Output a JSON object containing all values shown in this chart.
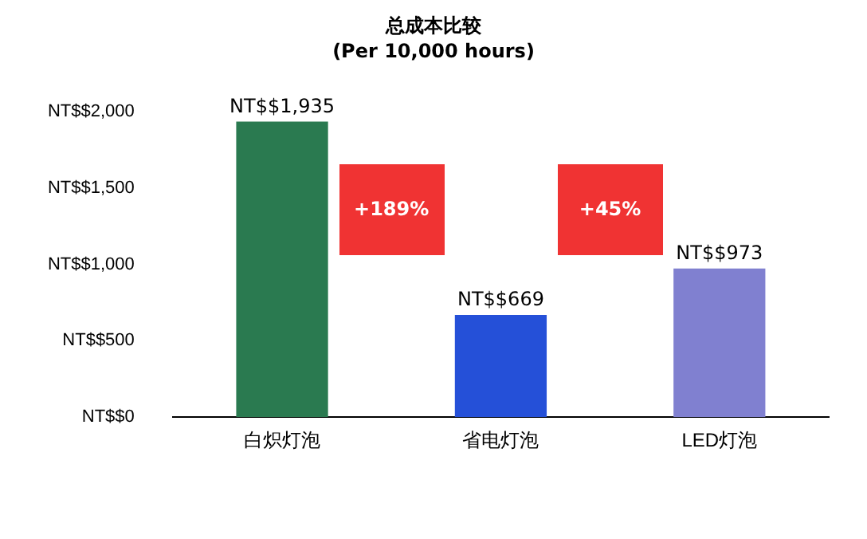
{
  "chart_data": {
    "type": "bar",
    "title": "总成本比较",
    "subtitle": "(Per 10,000 hours)",
    "categories": [
      "白炽灯泡",
      "省电灯泡",
      "LED灯泡"
    ],
    "values": [
      1935,
      669,
      973
    ],
    "colors": [
      "#2a7a50",
      "#2550d8",
      "#8080d0"
    ],
    "value_labels": [
      "NT$$1,935",
      "NT$$669",
      "NT$$973"
    ],
    "ylim": [
      0,
      2000
    ],
    "yticks": [
      {
        "value": 0,
        "label": "NT$$0"
      },
      {
        "value": 500,
        "label": "NT$$500"
      },
      {
        "value": 1000,
        "label": "NT$$1,000"
      },
      {
        "value": 1500,
        "label": "NT$$1,500"
      },
      {
        "value": 2000,
        "label": "NT$$2,000"
      }
    ],
    "annotations": [
      "+189%",
      "+45%"
    ],
    "grid": false,
    "legend": false
  }
}
